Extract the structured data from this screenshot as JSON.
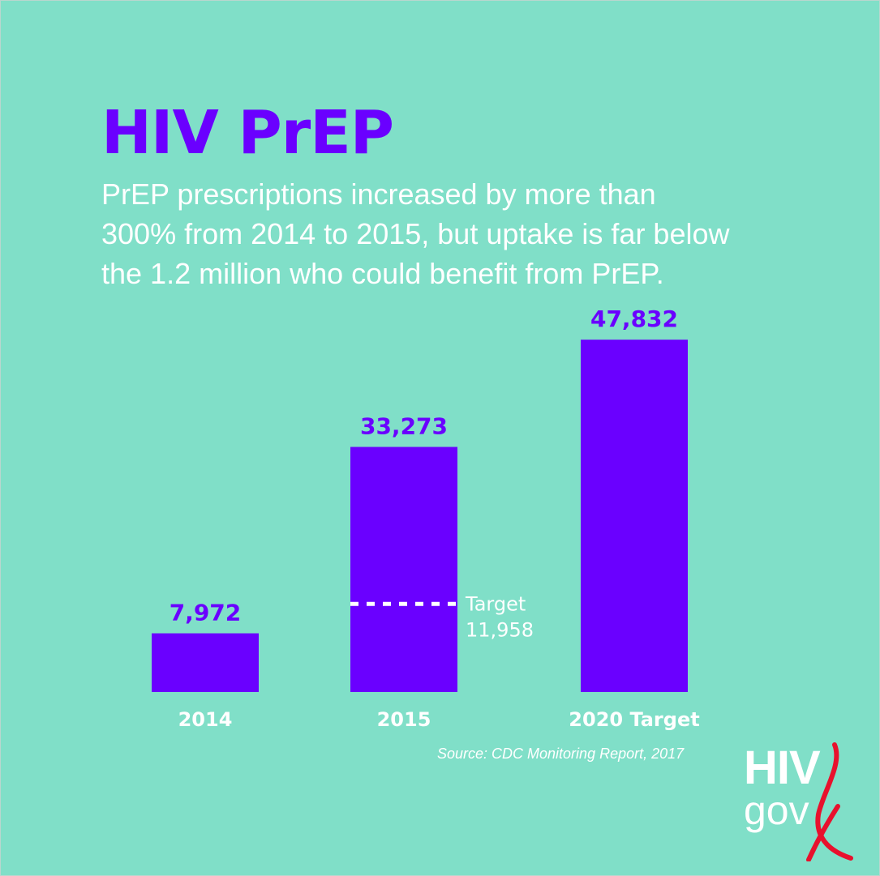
{
  "header": {
    "title": "HIV PrEP",
    "subtitle_lines": [
      "PrEP prescriptions increased by more than",
      "300% from 2014 to 2015, but uptake is far below",
      "the 1.2 million who could benefit from PrEP."
    ]
  },
  "chart_data": {
    "type": "bar",
    "categories": [
      "2014",
      "2015",
      "2020 Target"
    ],
    "values": [
      7972,
      33273,
      47832
    ],
    "value_labels": [
      "7,972",
      "33,273",
      "47,832"
    ],
    "ylim": [
      0,
      55000
    ],
    "grid": false,
    "bar_color": "#6a00ff",
    "target_line": {
      "category": "2015",
      "value": 11958,
      "label_lines": [
        "Target",
        "11,958"
      ],
      "color": "#ffffff"
    }
  },
  "footer": {
    "source": "Source: CDC Monitoring Report, 2017"
  },
  "logo": {
    "text_top": "HIV",
    "text_bottom": "gov",
    "ribbon_color": "#e8112d"
  },
  "colors": {
    "background": "#80dfc8",
    "accent": "#6a00ff",
    "text_light": "#ffffff"
  }
}
